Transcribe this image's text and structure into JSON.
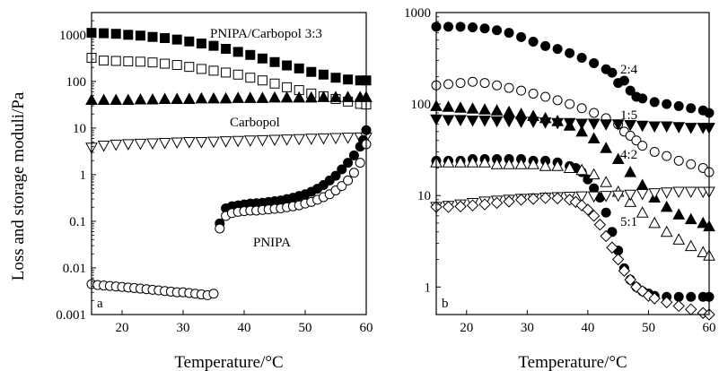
{
  "colors": {
    "ink": "#000000",
    "background": "#ffffff"
  },
  "chart_data": [
    {
      "type": "scatter",
      "panel_label": "a",
      "ylabel": "Loss and storage moduli/Pa",
      "xlabel": "Temperature/°C",
      "xlim": [
        15,
        60
      ],
      "ylim": [
        0.001,
        3000
      ],
      "y_scale": "log",
      "x_ticks": [
        "20",
        "30",
        "40",
        "50",
        "60"
      ],
      "y_ticks": [
        "0.001",
        "0.01",
        "0.1",
        "1",
        "10",
        "100",
        "1000"
      ],
      "annotations": [
        "PNIPA/Carbopol 3:3",
        "Carbopol",
        "PNIPA"
      ],
      "series": [
        {
          "marker": "square-filled",
          "x": [
            15,
            17,
            19,
            21,
            23,
            25,
            27,
            29,
            31,
            33,
            35,
            37,
            39,
            41,
            43,
            45,
            47,
            49,
            51,
            53,
            55,
            57,
            59,
            60
          ],
          "y": [
            1100,
            1080,
            1050,
            1000,
            960,
            900,
            850,
            790,
            720,
            650,
            580,
            500,
            430,
            370,
            310,
            260,
            220,
            190,
            160,
            140,
            120,
            110,
            105,
            105
          ]
        },
        {
          "marker": "square-open",
          "x": [
            15,
            17,
            19,
            21,
            23,
            25,
            27,
            29,
            31,
            33,
            35,
            37,
            39,
            41,
            43,
            45,
            47,
            49,
            51,
            53,
            55,
            57,
            59,
            60
          ],
          "y": [
            320,
            280,
            275,
            270,
            265,
            255,
            240,
            225,
            205,
            185,
            170,
            155,
            140,
            120,
            105,
            90,
            75,
            65,
            55,
            48,
            42,
            37,
            33,
            32
          ]
        },
        {
          "marker": "triangle-up-filled",
          "x": [
            15,
            17,
            19,
            21,
            23,
            25,
            27,
            29,
            31,
            33,
            35,
            37,
            39,
            41,
            43,
            45,
            47,
            49,
            51,
            53,
            55,
            57,
            59,
            60
          ],
          "y": [
            40,
            40,
            40,
            40,
            41,
            41,
            42,
            42,
            42,
            43,
            43,
            43,
            44,
            44,
            44,
            45,
            45,
            45,
            45,
            46,
            46,
            46,
            46,
            46
          ]
        },
        {
          "marker": "triangle-down-open",
          "x": [
            15,
            17,
            19,
            21,
            23,
            25,
            27,
            29,
            31,
            33,
            35,
            37,
            39,
            41,
            43,
            45,
            47,
            49,
            51,
            53,
            55,
            57,
            59,
            60
          ],
          "y": [
            3.8,
            4.2,
            4.4,
            4.5,
            4.6,
            4.7,
            4.8,
            4.9,
            5.0,
            5.0,
            5.1,
            5.2,
            5.3,
            5.4,
            5.5,
            5.6,
            5.7,
            5.8,
            5.9,
            6.0,
            6.1,
            6.2,
            6.3,
            6.3
          ]
        },
        {
          "marker": "circle-filled",
          "x": [
            36,
            37,
            38,
            39,
            40,
            41,
            42,
            43,
            44,
            45,
            46,
            47,
            48,
            49,
            50,
            51,
            52,
            53,
            54,
            55,
            56,
            57,
            58,
            59,
            59.5,
            60
          ],
          "y": [
            0.09,
            0.19,
            0.21,
            0.22,
            0.23,
            0.24,
            0.245,
            0.25,
            0.26,
            0.27,
            0.28,
            0.3,
            0.32,
            0.35,
            0.38,
            0.43,
            0.5,
            0.6,
            0.75,
            0.95,
            1.3,
            1.8,
            2.6,
            4.0,
            5.5,
            9.0
          ]
        },
        {
          "marker": "circle-open",
          "x": [
            15,
            16,
            17,
            18,
            19,
            20,
            21,
            22,
            23,
            24,
            25,
            26,
            27,
            28,
            29,
            30,
            31,
            32,
            33,
            34,
            35,
            36,
            37,
            38,
            39,
            40,
            41,
            42,
            43,
            44,
            45,
            46,
            47,
            48,
            49,
            50,
            51,
            52,
            53,
            54,
            55,
            56,
            57,
            58,
            59,
            60
          ],
          "y": [
            0.0045,
            0.0043,
            0.0042,
            0.0041,
            0.004,
            0.0039,
            0.0038,
            0.0037,
            0.0036,
            0.0035,
            0.0034,
            0.0033,
            0.0032,
            0.0031,
            0.003,
            0.003,
            0.0029,
            0.0028,
            0.0027,
            0.0026,
            0.0028,
            0.07,
            0.13,
            0.15,
            0.16,
            0.165,
            0.17,
            0.17,
            0.175,
            0.18,
            0.185,
            0.19,
            0.2,
            0.21,
            0.22,
            0.24,
            0.26,
            0.29,
            0.33,
            0.38,
            0.46,
            0.57,
            0.75,
            1.1,
            1.8,
            4.5
          ]
        }
      ]
    },
    {
      "type": "scatter",
      "panel_label": "b",
      "xlabel": "Temperature/°C",
      "xlim": [
        15,
        60
      ],
      "ylim": [
        0.5,
        1000
      ],
      "y_scale": "log",
      "x_ticks": [
        "20",
        "30",
        "40",
        "50",
        "60"
      ],
      "y_ticks": [
        "1",
        "10",
        "100",
        "1000"
      ],
      "annotations": [
        "2:4",
        "1:5",
        "4:2",
        "5:1"
      ],
      "series": [
        {
          "marker": "circle-filled",
          "x": [
            15,
            17,
            19,
            21,
            23,
            25,
            27,
            29,
            31,
            33,
            35,
            37,
            39,
            41,
            43,
            44,
            45,
            46,
            47,
            48,
            49,
            51,
            53,
            55,
            57,
            59,
            60
          ],
          "y": [
            700,
            700,
            700,
            690,
            670,
            640,
            600,
            540,
            480,
            430,
            400,
            360,
            320,
            280,
            240,
            220,
            170,
            180,
            140,
            120,
            115,
            105,
            100,
            95,
            90,
            85,
            80
          ]
        },
        {
          "marker": "circle-open",
          "x": [
            15,
            17,
            19,
            21,
            23,
            25,
            27,
            29,
            31,
            33,
            35,
            37,
            39,
            41,
            43,
            45,
            46,
            47,
            48,
            49,
            51,
            53,
            55,
            57,
            59,
            60
          ],
          "y": [
            160,
            165,
            170,
            175,
            170,
            160,
            150,
            140,
            130,
            120,
            110,
            100,
            90,
            80,
            70,
            60,
            50,
            45,
            40,
            35,
            30,
            27,
            24,
            22,
            20,
            18
          ]
        },
        {
          "marker": "triangle-up-filled",
          "x": [
            15,
            17,
            19,
            21,
            23,
            25,
            27,
            29,
            31,
            33,
            35,
            37,
            39,
            41,
            43,
            45,
            47,
            49,
            51,
            53,
            55,
            57,
            59,
            60
          ],
          "y": [
            95,
            93,
            91,
            89,
            87,
            85,
            82,
            78,
            74,
            70,
            65,
            58,
            50,
            42,
            33,
            25,
            18,
            13,
            9.5,
            7.5,
            6.2,
            5.5,
            5.0,
            4.6
          ]
        },
        {
          "marker": "triangle-down-filled",
          "x": [
            15,
            17,
            19,
            21,
            23,
            25,
            27,
            29,
            31,
            33,
            35,
            37,
            39,
            41,
            43,
            45,
            47,
            49,
            51,
            53,
            55,
            57,
            59,
            60
          ],
          "y": [
            68,
            67,
            67,
            66,
            66,
            65,
            65,
            64,
            64,
            63,
            62,
            62,
            61,
            61,
            60,
            60,
            59,
            58,
            57,
            57,
            56,
            55,
            55,
            55
          ]
        },
        {
          "marker": "circle-filled",
          "x": [
            15,
            17,
            19,
            21,
            23,
            25,
            27,
            29,
            31,
            33,
            35,
            37,
            38,
            39,
            40,
            41,
            42,
            43,
            44,
            45,
            46,
            47,
            48,
            49,
            50,
            51,
            53,
            55,
            57,
            59,
            60
          ],
          "y": [
            24,
            24,
            24,
            25,
            25,
            25,
            25,
            25,
            24,
            24,
            23,
            21,
            20,
            18,
            15,
            12,
            9.5,
            6.5,
            4.0,
            2.5,
            1.6,
            1.2,
            1.0,
            0.9,
            0.85,
            0.8,
            0.78,
            0.78,
            0.78,
            0.78,
            0.78
          ]
        },
        {
          "marker": "triangle-up-open",
          "x": [
            15,
            17,
            19,
            21,
            23,
            25,
            27,
            29,
            31,
            33,
            35,
            37,
            39,
            41,
            43,
            45,
            47,
            49,
            51,
            53,
            55,
            57,
            59,
            60
          ],
          "y": [
            23,
            23,
            23,
            23,
            23,
            22,
            22,
            22,
            22,
            21,
            21,
            20,
            19,
            17,
            14,
            11,
            8.5,
            6.5,
            5.0,
            4.0,
            3.3,
            2.8,
            2.4,
            2.2
          ]
        },
        {
          "marker": "triangle-down-open",
          "x": [
            15,
            17,
            19,
            21,
            23,
            25,
            27,
            29,
            31,
            33,
            35,
            37,
            39,
            41,
            43,
            45,
            47,
            49,
            51,
            53,
            55,
            57,
            59,
            60
          ],
          "y": [
            7.5,
            7.7,
            8.0,
            8.3,
            8.6,
            8.8,
            9.0,
            9.2,
            9.3,
            9.5,
            9.6,
            9.7,
            9.8,
            9.8,
            9.9,
            10.0,
            10.2,
            10.4,
            10.6,
            10.8,
            11.0,
            11.0,
            11.0,
            11.0
          ]
        },
        {
          "marker": "diamond-open",
          "x": [
            15,
            17,
            19,
            21,
            23,
            25,
            27,
            29,
            31,
            33,
            35,
            37,
            38,
            39,
            40,
            41,
            42,
            43,
            44,
            45,
            46,
            47,
            48,
            49,
            50,
            51,
            53,
            55,
            57,
            59,
            60
          ],
          "y": [
            7.5,
            7.5,
            7.6,
            7.8,
            8.0,
            8.3,
            8.6,
            9.0,
            9.2,
            9.4,
            9.3,
            9.0,
            8.5,
            7.8,
            7.0,
            6.0,
            4.8,
            3.6,
            2.7,
            2.0,
            1.5,
            1.2,
            1.0,
            0.9,
            0.8,
            0.75,
            0.68,
            0.62,
            0.57,
            0.52,
            0.5
          ]
        }
      ]
    }
  ]
}
